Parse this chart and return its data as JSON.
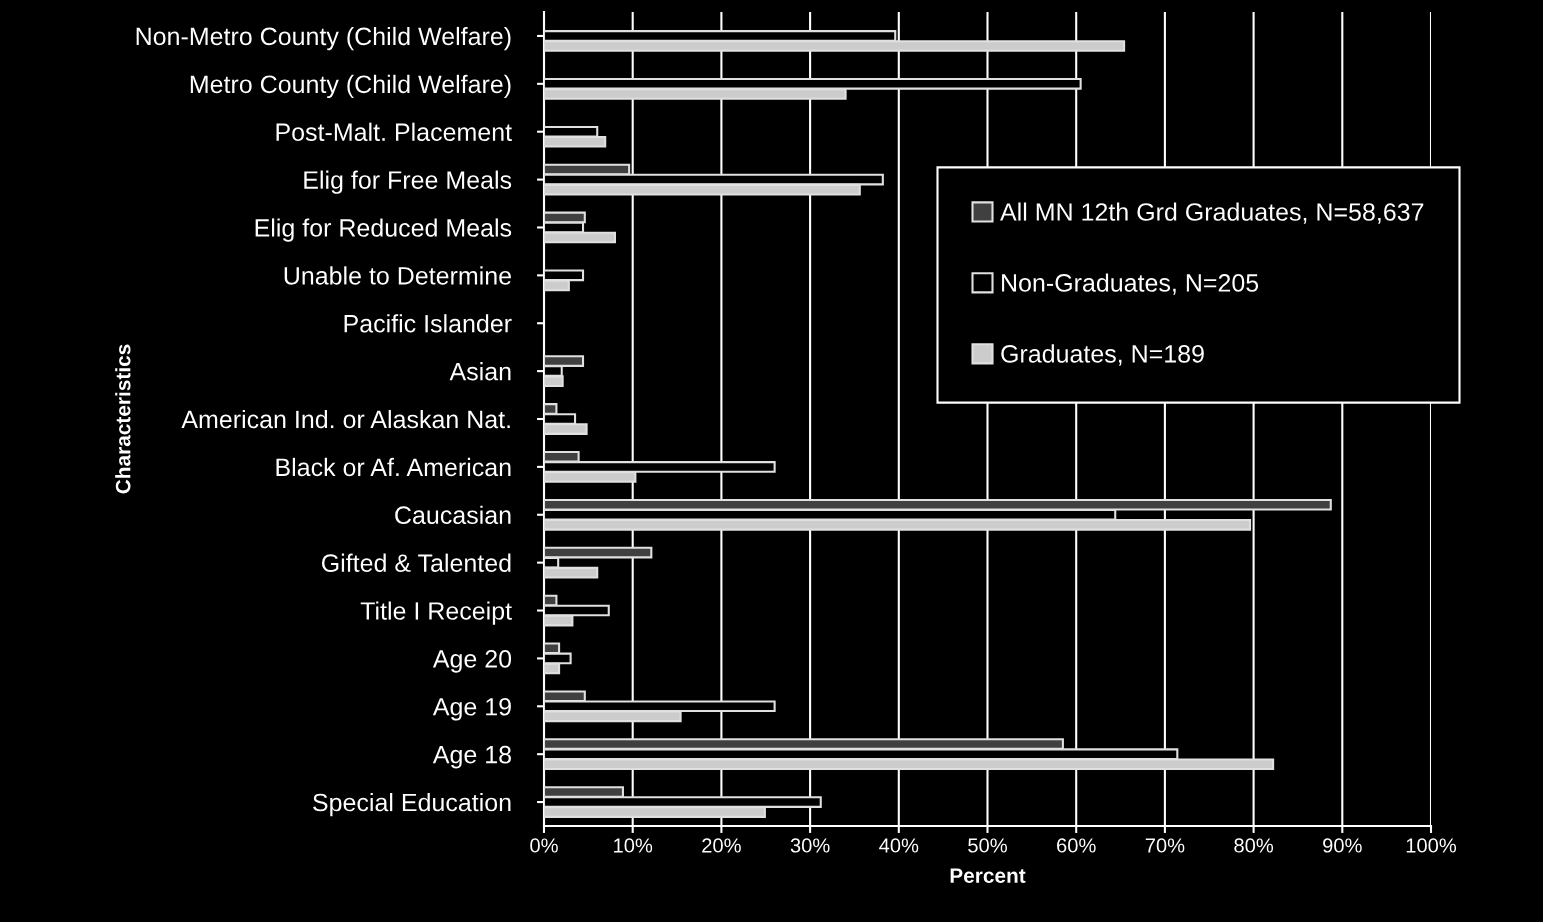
{
  "chart_data": {
    "type": "bar",
    "orientation": "horizontal",
    "xlabel": "Percent",
    "ylabel": "Characteristics",
    "categories": [
      "Non-Metro County (Child Welfare)",
      "Metro County (Child Welfare)",
      "Post-Malt. Placement",
      "Elig for Free Meals",
      "Elig for Reduced Meals",
      "Unable to Determine",
      "Pacific Islander",
      "Asian",
      "American Ind. or Alaskan Nat.",
      "Black or Af. American",
      "Caucasian",
      "Gifted & Talented",
      "Title I Receipt",
      "Age 20",
      "Age 19",
      "Age 18",
      "Special Education"
    ],
    "series": [
      {
        "name": "All MN 12th Grd Graduates, N=58,637",
        "color": "#404040",
        "values": [
          null,
          null,
          null,
          9.6,
          4.6,
          null,
          null,
          4.4,
          1.4,
          3.9,
          88.7,
          12.1,
          1.4,
          1.7,
          4.6,
          58.5,
          8.9
        ]
      },
      {
        "name": "Non-Graduates, N=205",
        "color": "#000000",
        "values": [
          39.6,
          60.5,
          6.0,
          38.2,
          4.4,
          4.4,
          null,
          2.0,
          3.5,
          26.0,
          64.4,
          1.6,
          7.3,
          3.0,
          26.0,
          71.4,
          31.2
        ]
      },
      {
        "name": "Graduates, N=189",
        "color": "#cccccc",
        "values": [
          65.4,
          34.0,
          6.9,
          35.6,
          8.0,
          2.8,
          null,
          2.1,
          4.8,
          10.3,
          79.6,
          6.0,
          3.2,
          1.7,
          15.4,
          82.2,
          24.9
        ]
      }
    ],
    "xlim": [
      0,
      100
    ],
    "xticks": [
      {
        "value": 0,
        "label": "0%"
      },
      {
        "value": 10,
        "label": "10%"
      },
      {
        "value": 20,
        "label": "20%"
      },
      {
        "value": 30,
        "label": "30%"
      },
      {
        "value": 40,
        "label": "40%"
      },
      {
        "value": 50,
        "label": "50%"
      },
      {
        "value": 60,
        "label": "60%"
      },
      {
        "value": 70,
        "label": "70%"
      },
      {
        "value": 80,
        "label": "80%"
      },
      {
        "value": 90,
        "label": "90%"
      },
      {
        "value": 100,
        "label": "100%"
      }
    ],
    "grid": "x",
    "legend": "right"
  }
}
